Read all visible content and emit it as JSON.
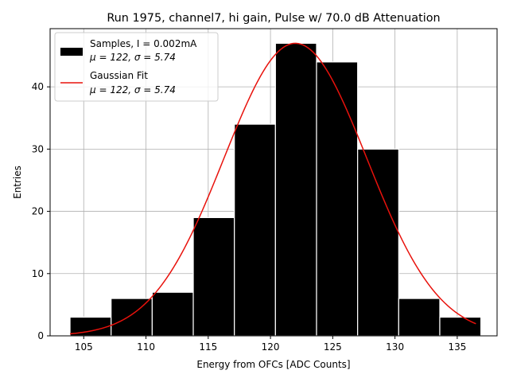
{
  "chart_data": {
    "type": "bar",
    "title": "Run 1975, channel7, hi gain, Pulse w/ 70.0 dB Attenuation",
    "xlabel": "Energy from OFCs [ADC Counts]",
    "ylabel": "Entries",
    "xlim": [
      102.3,
      138.2
    ],
    "ylim": [
      0,
      49.35
    ],
    "grid": true,
    "legend_position": "top-left",
    "x_ticks": [
      "105",
      "110",
      "115",
      "120",
      "125",
      "130",
      "135"
    ],
    "y_ticks": [
      "0",
      "10",
      "20",
      "30",
      "40"
    ],
    "bin_edges": [
      103.9,
      107.2,
      110.5,
      113.8,
      117.1,
      120.4,
      123.7,
      127.0,
      130.3,
      133.6,
      136.9
    ],
    "counts": [
      3,
      6,
      7,
      19,
      34,
      47,
      44,
      30,
      6,
      3
    ],
    "fit": {
      "mu": 122.0,
      "sigma": 5.74,
      "amplitude": 47.0,
      "x_range": [
        103.9,
        136.5
      ]
    },
    "colors": {
      "bars": "#000000",
      "bar_edge": "#ffffff",
      "fit": "#e8120c",
      "grid": "#b0b0b0"
    },
    "legend": [
      {
        "line1": "Samples, I = 0.002mA",
        "line2": "μ = 122, σ = 5.74"
      },
      {
        "line1": "Gaussian Fit",
        "line2": "μ = 122, σ = 5.74"
      }
    ]
  }
}
